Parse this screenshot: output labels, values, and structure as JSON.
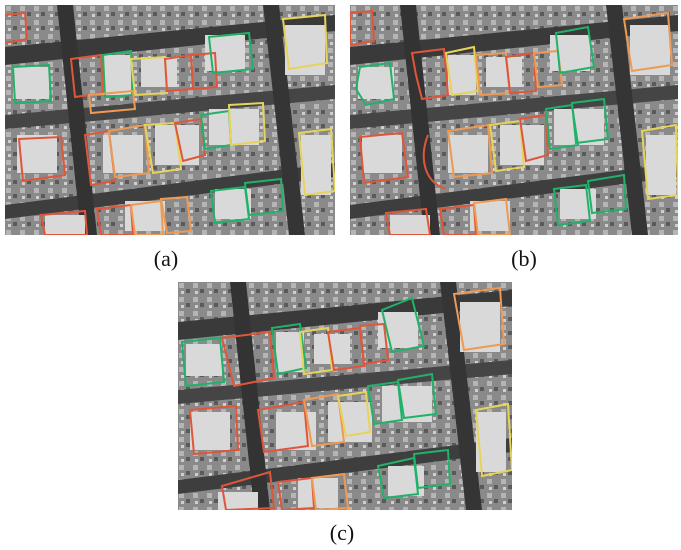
{
  "captions": {
    "a": "(a)",
    "b": "(b)",
    "c": "(c)"
  },
  "colors": {
    "background": "#ffffff",
    "roof": "#d8d8d8",
    "ground": "#6e6e6e",
    "road": "#3a3a3a",
    "outline_red": "#e0563a",
    "outline_orange": "#ee9a55",
    "outline_yellow": "#e6d45a",
    "outline_green": "#21b26a"
  }
}
